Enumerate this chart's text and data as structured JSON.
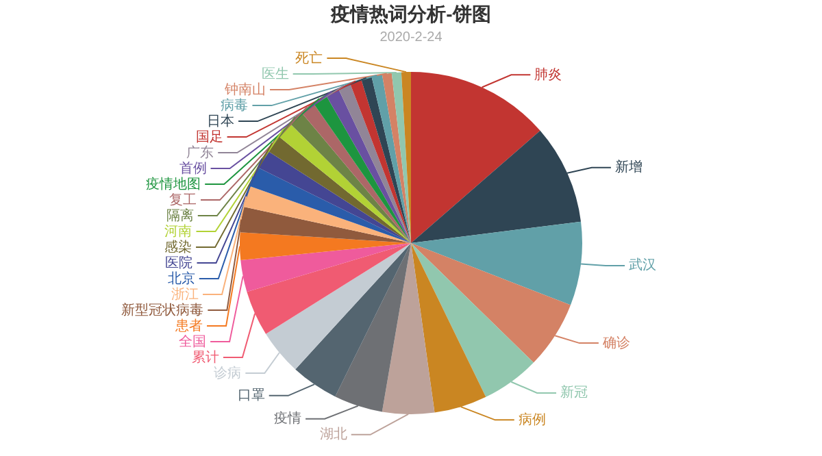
{
  "chart_data": {
    "type": "pie",
    "title": "疫情热词分析-饼图",
    "subtitle": "2020-2-24",
    "categories": [
      "肺炎",
      "新增",
      "武汉",
      "确诊",
      "新冠",
      "病例",
      "湖北",
      "疫情",
      "口罩",
      "诊病",
      "累计",
      "全国",
      "患者",
      "新型冠状病毒",
      "浙江",
      "北京",
      "医院",
      "感染",
      "河南",
      "隔离",
      "复工",
      "疫情地图",
      "首例",
      "广东",
      "国足",
      "日本",
      "病毒",
      "钟南山",
      "医生",
      "死亡"
    ],
    "values": [
      13.6,
      9.4,
      7.9,
      6.4,
      5.5,
      5.0,
      4.9,
      4.6,
      4.5,
      4.3,
      4.3,
      3.0,
      2.6,
      2.4,
      2.0,
      1.9,
      1.8,
      1.7,
      1.6,
      1.5,
      1.4,
      1.4,
      1.3,
      1.2,
      1.1,
      1.0,
      1.0,
      0.9,
      0.9,
      0.9
    ],
    "colors": [
      "#c23531",
      "#2f4554",
      "#61a0a8",
      "#d48265",
      "#91c7ae",
      "#ca8622",
      "#bda29a",
      "#6e7074",
      "#546570",
      "#c4ccd3",
      "#f05b72",
      "#ef5b9c",
      "#f47920",
      "#905a3d",
      "#fab27b",
      "#2a5caa",
      "#444693",
      "#726930",
      "#b2d235",
      "#6d8346",
      "#ac6767",
      "#1d953f",
      "#6950a1",
      "#918597",
      "#c23531",
      "#2f4554",
      "#61a0a8",
      "#d48265",
      "#91c7ae",
      "#ca8622"
    ]
  }
}
